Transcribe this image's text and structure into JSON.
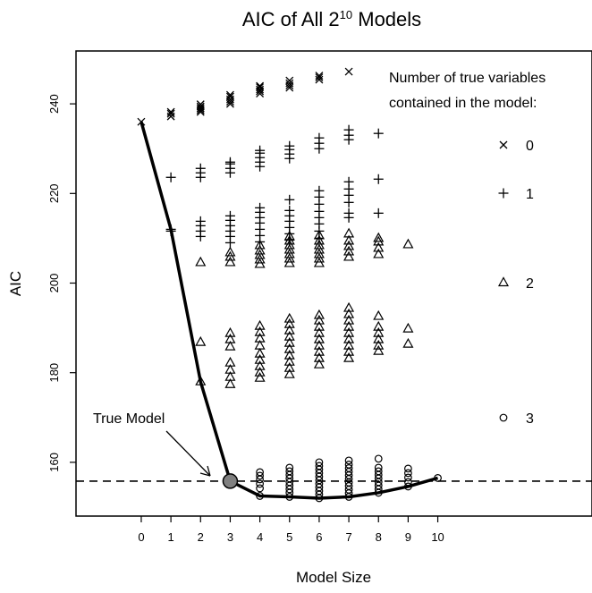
{
  "chart_data": {
    "type": "scatter",
    "title": "AIC of All 2",
    "title_superscript": "10",
    "title_suffix": " Models",
    "xlabel": "Model Size",
    "ylabel": "AIC",
    "xlim": [
      -2.2,
      15.2
    ],
    "ylim": [
      148,
      251.8
    ],
    "xticks": [
      0,
      1,
      2,
      3,
      4,
      5,
      6,
      7,
      8,
      9,
      10
    ],
    "yticks": [
      160,
      180,
      200,
      220,
      240
    ],
    "grid": false,
    "legend": {
      "placement": "top-right",
      "title_line1": "Number of true variables",
      "title_line2": "contained in the model:",
      "entries": [
        {
          "label": "0",
          "marker": "x"
        },
        {
          "label": "1",
          "marker": "+"
        },
        {
          "label": "2",
          "marker": "triangle"
        },
        {
          "label": "3",
          "marker": "circle"
        }
      ]
    },
    "reference_line": {
      "y": 155.8,
      "style": "dashed"
    },
    "min_aic_path": {
      "x": [
        0,
        1,
        2,
        3,
        4,
        5,
        6,
        7,
        8,
        9,
        10
      ],
      "y": [
        236,
        212,
        178,
        155.8,
        152.5,
        152.3,
        152,
        152.3,
        153.2,
        154.6,
        156.5
      ]
    },
    "true_model": {
      "x": 3,
      "y": 155.8,
      "label": "True Model"
    },
    "series": [
      {
        "name": "0",
        "marker": "x",
        "points": [
          [
            0,
            236
          ],
          [
            1,
            237.2
          ],
          [
            1,
            237.8
          ],
          [
            1,
            238.2
          ],
          [
            2,
            238.2
          ],
          [
            2,
            238.6
          ],
          [
            2,
            239.0
          ],
          [
            2,
            239.4
          ],
          [
            2,
            239.9
          ],
          [
            3,
            240.0
          ],
          [
            3,
            240.5
          ],
          [
            3,
            241.0
          ],
          [
            3,
            241.6
          ],
          [
            3,
            242.0
          ],
          [
            4,
            242.3
          ],
          [
            4,
            242.8
          ],
          [
            4,
            243.2
          ],
          [
            4,
            243.7
          ],
          [
            4,
            244.0
          ],
          [
            5,
            243.6
          ],
          [
            5,
            244.1
          ],
          [
            5,
            244.6
          ],
          [
            5,
            245.2
          ],
          [
            6,
            245.4
          ],
          [
            6,
            245.9
          ],
          [
            6,
            246.3
          ],
          [
            7,
            247.2
          ]
        ]
      },
      {
        "name": "1",
        "marker": "+",
        "points": [
          [
            1,
            212
          ],
          [
            1,
            211.6
          ],
          [
            1,
            223.6
          ],
          [
            2,
            210.4
          ],
          [
            2,
            211.6
          ],
          [
            2,
            212.8
          ],
          [
            2,
            213.8
          ],
          [
            2,
            223.6
          ],
          [
            2,
            224.6
          ],
          [
            2,
            225.6
          ],
          [
            3,
            209.0
          ],
          [
            3,
            210.4
          ],
          [
            3,
            211.6
          ],
          [
            3,
            212.8
          ],
          [
            3,
            214.0
          ],
          [
            3,
            215.0
          ],
          [
            3,
            224.6
          ],
          [
            3,
            225.6
          ],
          [
            3,
            226.6
          ],
          [
            3,
            227.0
          ],
          [
            4,
            209.2
          ],
          [
            4,
            210.6
          ],
          [
            4,
            212.0
          ],
          [
            4,
            213.4
          ],
          [
            4,
            214.6
          ],
          [
            4,
            215.8
          ],
          [
            4,
            216.8
          ],
          [
            4,
            226.0
          ],
          [
            4,
            227.0
          ],
          [
            4,
            228.0
          ],
          [
            4,
            229.0
          ],
          [
            4,
            229.6
          ],
          [
            5,
            209.6
          ],
          [
            5,
            211.0
          ],
          [
            5,
            212.4
          ],
          [
            5,
            213.8
          ],
          [
            5,
            215.0
          ],
          [
            5,
            216.2
          ],
          [
            5,
            218.6
          ],
          [
            5,
            227.8
          ],
          [
            5,
            228.8
          ],
          [
            5,
            229.8
          ],
          [
            5,
            230.6
          ],
          [
            6,
            210.0
          ],
          [
            6,
            211.6
          ],
          [
            6,
            213.2
          ],
          [
            6,
            214.6
          ],
          [
            6,
            216.0
          ],
          [
            6,
            217.6
          ],
          [
            6,
            219.2
          ],
          [
            6,
            220.6
          ],
          [
            6,
            230.0
          ],
          [
            6,
            231.2
          ],
          [
            6,
            232.4
          ],
          [
            7,
            214.6
          ],
          [
            7,
            215.6
          ],
          [
            7,
            218.0
          ],
          [
            7,
            219.6
          ],
          [
            7,
            221.0
          ],
          [
            7,
            222.6
          ],
          [
            7,
            232.0
          ],
          [
            7,
            233.0
          ],
          [
            7,
            234.2
          ],
          [
            8,
            215.6
          ],
          [
            8,
            223.2
          ],
          [
            8,
            233.4
          ]
        ]
      },
      {
        "name": "2",
        "marker": "triangle",
        "points": [
          [
            2,
            178
          ],
          [
            2,
            186.8
          ],
          [
            2,
            204.6
          ],
          [
            3,
            177.4
          ],
          [
            3,
            179.0
          ],
          [
            3,
            180.6
          ],
          [
            3,
            182.2
          ],
          [
            3,
            185.8
          ],
          [
            3,
            187.4
          ],
          [
            3,
            188.8
          ],
          [
            3,
            204.6
          ],
          [
            3,
            205.8
          ],
          [
            3,
            206.8
          ],
          [
            4,
            178.8
          ],
          [
            4,
            180.0
          ],
          [
            4,
            181.4
          ],
          [
            4,
            182.8
          ],
          [
            4,
            184.2
          ],
          [
            4,
            186.0
          ],
          [
            4,
            187.6
          ],
          [
            4,
            189.0
          ],
          [
            4,
            190.4
          ],
          [
            4,
            204.2
          ],
          [
            4,
            205.2
          ],
          [
            4,
            206.2
          ],
          [
            4,
            207.2
          ],
          [
            4,
            208.4
          ],
          [
            5,
            179.6
          ],
          [
            5,
            181.0
          ],
          [
            5,
            182.4
          ],
          [
            5,
            183.8
          ],
          [
            5,
            185.2
          ],
          [
            5,
            186.6
          ],
          [
            5,
            188.0
          ],
          [
            5,
            189.4
          ],
          [
            5,
            190.8
          ],
          [
            5,
            192.0
          ],
          [
            5,
            204.4
          ],
          [
            5,
            205.4
          ],
          [
            5,
            206.4
          ],
          [
            5,
            207.4
          ],
          [
            5,
            208.4
          ],
          [
            5,
            209.4
          ],
          [
            5,
            210.4
          ],
          [
            6,
            181.8
          ],
          [
            6,
            183.2
          ],
          [
            6,
            184.6
          ],
          [
            6,
            186.0
          ],
          [
            6,
            187.4
          ],
          [
            6,
            188.8
          ],
          [
            6,
            190.2
          ],
          [
            6,
            191.6
          ],
          [
            6,
            192.8
          ],
          [
            6,
            204.4
          ],
          [
            6,
            205.4
          ],
          [
            6,
            206.4
          ],
          [
            6,
            207.4
          ],
          [
            6,
            208.4
          ],
          [
            6,
            209.4
          ],
          [
            6,
            210.6
          ],
          [
            7,
            183.2
          ],
          [
            7,
            184.6
          ],
          [
            7,
            186.0
          ],
          [
            7,
            187.4
          ],
          [
            7,
            188.8
          ],
          [
            7,
            190.2
          ],
          [
            7,
            191.6
          ],
          [
            7,
            193.0
          ],
          [
            7,
            194.4
          ],
          [
            7,
            205.8
          ],
          [
            7,
            207.0
          ],
          [
            7,
            208.2
          ],
          [
            7,
            209.4
          ],
          [
            7,
            211.0
          ],
          [
            8,
            184.8
          ],
          [
            8,
            186.0
          ],
          [
            8,
            187.4
          ],
          [
            8,
            188.8
          ],
          [
            8,
            190.2
          ],
          [
            8,
            192.6
          ],
          [
            8,
            206.4
          ],
          [
            8,
            207.8
          ],
          [
            8,
            209.2
          ],
          [
            8,
            210.0
          ],
          [
            9,
            186.4
          ],
          [
            9,
            189.8
          ],
          [
            9,
            208.6
          ]
        ]
      },
      {
        "name": "3",
        "marker": "circle",
        "points": [
          [
            4,
            152.5
          ],
          [
            4,
            154.2
          ],
          [
            4,
            155.2
          ],
          [
            4,
            156.2
          ],
          [
            4,
            157.0
          ],
          [
            4,
            157.8
          ],
          [
            5,
            152.3
          ],
          [
            5,
            153.2
          ],
          [
            5,
            154.0
          ],
          [
            5,
            154.8
          ],
          [
            5,
            155.6
          ],
          [
            5,
            156.4
          ],
          [
            5,
            157.2
          ],
          [
            5,
            158.0
          ],
          [
            5,
            158.8
          ],
          [
            6,
            152.0
          ],
          [
            6,
            152.8
          ],
          [
            6,
            153.6
          ],
          [
            6,
            154.4
          ],
          [
            6,
            155.2
          ],
          [
            6,
            156.0
          ],
          [
            6,
            156.8
          ],
          [
            6,
            157.6
          ],
          [
            6,
            158.4
          ],
          [
            6,
            159.2
          ],
          [
            6,
            160.0
          ],
          [
            7,
            152.3
          ],
          [
            7,
            153.1
          ],
          [
            7,
            153.9
          ],
          [
            7,
            154.7
          ],
          [
            7,
            155.5
          ],
          [
            7,
            156.3
          ],
          [
            7,
            157.1
          ],
          [
            7,
            157.9
          ],
          [
            7,
            158.7
          ],
          [
            7,
            159.5
          ],
          [
            7,
            160.4
          ],
          [
            8,
            153.2
          ],
          [
            8,
            154.0
          ],
          [
            8,
            154.8
          ],
          [
            8,
            155.6
          ],
          [
            8,
            156.4
          ],
          [
            8,
            157.2
          ],
          [
            8,
            158.0
          ],
          [
            8,
            158.8
          ],
          [
            8,
            160.8
          ],
          [
            9,
            154.6
          ],
          [
            9,
            155.6
          ],
          [
            9,
            156.6
          ],
          [
            9,
            157.6
          ],
          [
            9,
            158.6
          ],
          [
            10,
            156.5
          ]
        ]
      }
    ]
  }
}
